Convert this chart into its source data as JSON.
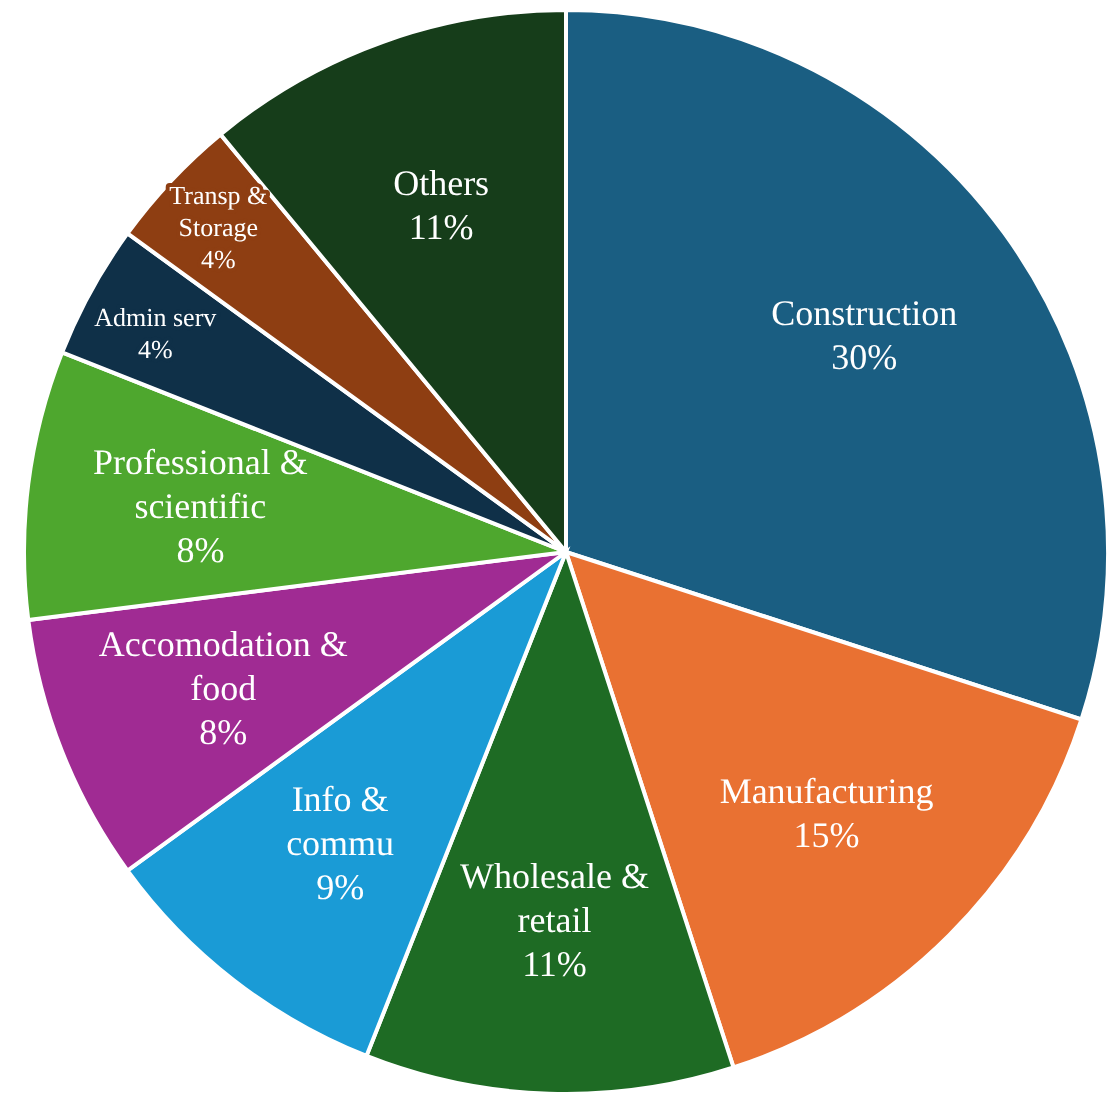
{
  "chart_data": {
    "type": "pie",
    "categories": [
      "Construction",
      "Manufacturing",
      "Wholesale & retail",
      "Info & commu",
      "Accomodation & food",
      "Professional & scientific",
      "Admin serv",
      "Transp & Storage",
      "Others"
    ],
    "values": [
      30,
      15,
      11,
      9,
      8,
      8,
      4,
      4,
      11
    ],
    "value_labels": [
      "30%",
      "15%",
      "11%",
      "9%",
      "8%",
      "8%",
      "4%",
      "4%",
      "11%"
    ],
    "colors": [
      "#1a5e82",
      "#e97132",
      "#1e6b24",
      "#1a9bd6",
      "#a02b93",
      "#4ea72e",
      "#0f3048",
      "#8e3e12",
      "#163d1a"
    ]
  }
}
